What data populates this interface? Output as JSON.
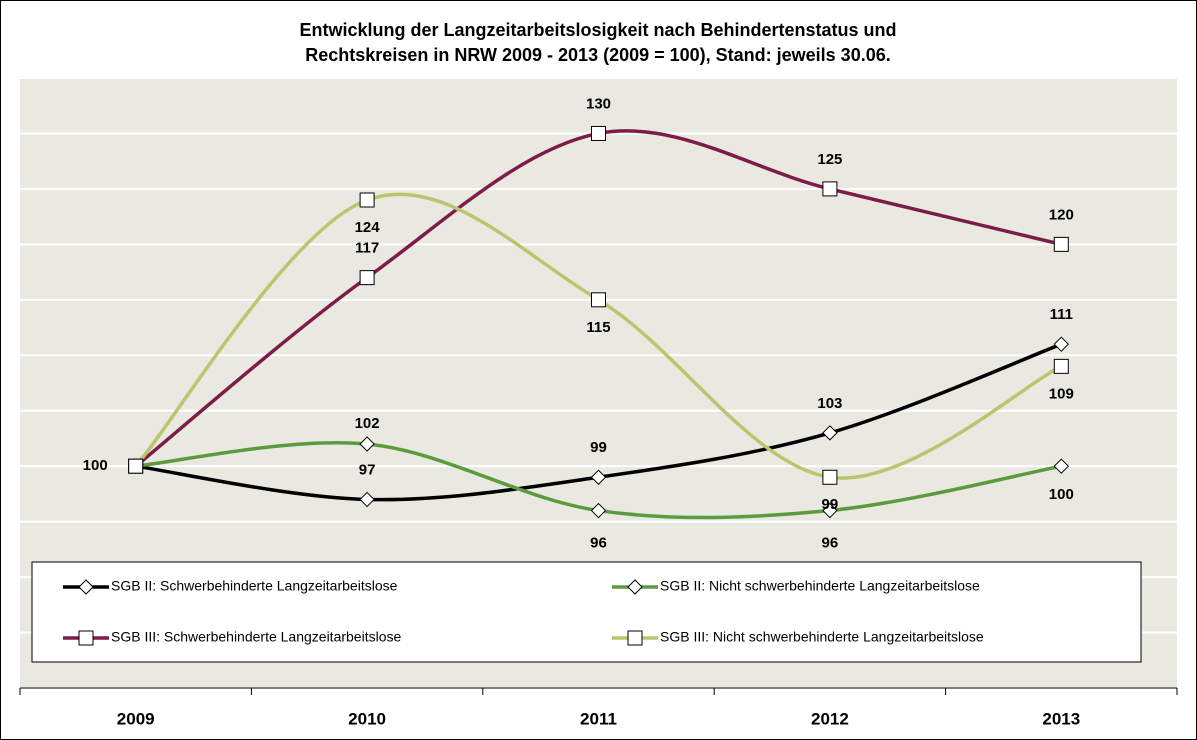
{
  "chart_data": {
    "type": "line",
    "title": [
      "Entwicklung  der Langzeitarbeitslosigkeit nach Behindertenstatus und",
      "Rechtskreisen in NRW 2009 - 2013 (2009 = 100), Stand: jeweils 30.06."
    ],
    "categories": [
      "2009",
      "2010",
      "2011",
      "2012",
      "2013"
    ],
    "series": [
      {
        "name": "SGB II: Schwerbehinderte Langzeitarbeitslose",
        "color": "#000000",
        "marker": "diamond",
        "values": [
          100,
          97,
          99,
          103,
          111
        ]
      },
      {
        "name": "SGB II: Nicht schwerbehinderte Langzeitarbeitslose",
        "color": "#5b9b3e",
        "marker": "diamond",
        "values": [
          100,
          102,
          96,
          96,
          100
        ]
      },
      {
        "name": "SGB III: Schwerbehinderte Langzeitarbeitslose",
        "color": "#7d1c48",
        "marker": "square",
        "values": [
          100,
          117,
          130,
          125,
          120
        ]
      },
      {
        "name": "SGB III: Nicht schwerbehinderte Langzeitarbeitslose",
        "color": "#bdc46e",
        "marker": "square",
        "values": [
          100,
          124,
          115,
          99,
          109
        ]
      }
    ],
    "ylim": [
      80,
      135
    ],
    "yticks": [
      80,
      85,
      90,
      95,
      100,
      105,
      110,
      115,
      120,
      125,
      130,
      135
    ],
    "grid": true
  }
}
